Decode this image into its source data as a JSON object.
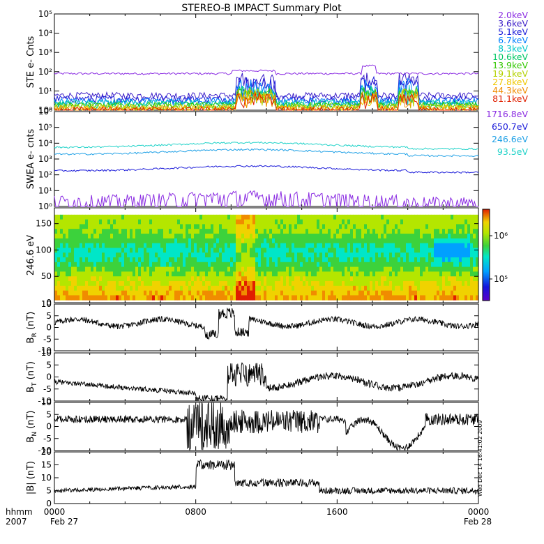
{
  "title": "STEREO-B IMPACT Summary Plot",
  "footer": {
    "time_label": "hhmm",
    "year": "2007",
    "start_date": "Feb 27",
    "end_date": "Feb 28",
    "x_ticks": [
      "0000",
      "0800",
      "1600",
      "0000"
    ]
  },
  "side_stamp": "Wed Dec 14 16:41:02 2009",
  "colors": {
    "purple": "#8a2be2",
    "navy": "#1a1ad9",
    "blue": "#0050ff",
    "cyan": "#00b4e6",
    "teal": "#00d2b4",
    "green": "#20c820",
    "lime": "#78d21e",
    "yellow": "#d2c800",
    "gold": "#f0a000",
    "orange": "#f07800",
    "red": "#e02000",
    "sky": "#1ea0e6",
    "aqua": "#1ed2c8"
  },
  "chart_data": [
    {
      "id": "ste",
      "type": "line",
      "ylabel": "STE e- Cnts",
      "yscale": "log",
      "ylim": [
        1,
        100000
      ],
      "y_ticks": [
        "10⁰",
        "10¹",
        "10²",
        "10³",
        "10⁴",
        "10⁵"
      ],
      "x_range_hours": [
        0,
        24
      ],
      "series": [
        {
          "name": "2.0keV",
          "color": "#8a2be2",
          "baseline": 80
        },
        {
          "name": "3.6keV",
          "color": "#3c1ec8",
          "baseline": 6
        },
        {
          "name": "5.1keV",
          "color": "#1a1ad9",
          "baseline": 4
        },
        {
          "name": "6.7keV",
          "color": "#0080ff",
          "baseline": 3
        },
        {
          "name": "8.3keV",
          "color": "#00c8c8",
          "baseline": 2.5
        },
        {
          "name": "10.6keV",
          "color": "#00c864",
          "baseline": 2
        },
        {
          "name": "13.9keV",
          "color": "#32c800",
          "baseline": 1.8
        },
        {
          "name": "19.1keV",
          "color": "#b4d200",
          "baseline": 1.5
        },
        {
          "name": "27.8keV",
          "color": "#f0c800",
          "baseline": 1.3
        },
        {
          "name": "44.3keV",
          "color": "#f08c00",
          "baseline": 1.2
        },
        {
          "name": "81.1keV",
          "color": "#e02000",
          "baseline": 1.05
        }
      ]
    },
    {
      "id": "swea",
      "type": "line",
      "ylabel": "SWEA e- cnts",
      "yscale": "log",
      "ylim": [
        1,
        1000000
      ],
      "y_ticks": [
        "10⁰",
        "10¹",
        "10²",
        "10³",
        "10⁴",
        "10⁵",
        "10⁶"
      ],
      "x_range_hours": [
        0,
        24
      ],
      "series": [
        {
          "name": "1716.8eV",
          "color": "#8a2be2",
          "baseline": 2
        },
        {
          "name": "650.7eV",
          "color": "#1a1ad9",
          "baseline": 180
        },
        {
          "name": "246.6eV",
          "color": "#1ea0e6",
          "baseline": 2000
        },
        {
          "name": "93.5eV",
          "color": "#1ed2c8",
          "baseline": 5500
        }
      ]
    },
    {
      "id": "pad",
      "type": "heatmap",
      "ylabel": "246.6 eV",
      "ylim": [
        0,
        180
      ],
      "y_ticks": [
        "0",
        "50",
        "100",
        "150"
      ],
      "colorbar_ticks": [
        "10⁶",
        "10⁵"
      ],
      "x_range_hours": [
        0,
        24
      ]
    },
    {
      "id": "br",
      "type": "line",
      "ylabel": "B_R (nT)",
      "ylabel_main": "B",
      "ylabel_sub": "R",
      "ylabel_unit": " (nT)",
      "ylim": [
        -10,
        10
      ],
      "y_ticks": [
        "-10",
        "-5",
        "0",
        "5",
        "10"
      ],
      "series": [
        {
          "name": "BR",
          "color": "#000000"
        }
      ]
    },
    {
      "id": "bt",
      "type": "line",
      "ylabel": "B_T (nT)",
      "ylabel_main": "B",
      "ylabel_sub": "T",
      "ylabel_unit": " (nT)",
      "ylim": [
        -10,
        10
      ],
      "y_ticks": [
        "-10",
        "-5",
        "0",
        "5",
        "10"
      ],
      "series": [
        {
          "name": "BT",
          "color": "#000000"
        }
      ]
    },
    {
      "id": "bn",
      "type": "line",
      "ylabel": "B_N (nT)",
      "ylabel_main": "B",
      "ylabel_sub": "N",
      "ylabel_unit": " (nT)",
      "ylim": [
        -10,
        10
      ],
      "y_ticks": [
        "-10",
        "-5",
        "0",
        "5",
        "10"
      ],
      "series": [
        {
          "name": "BN",
          "color": "#000000"
        }
      ]
    },
    {
      "id": "bmag",
      "type": "line",
      "ylabel": "|B| (nT)",
      "ylim": [
        0,
        20
      ],
      "y_ticks": [
        "0",
        "5",
        "10",
        "15",
        "20"
      ],
      "series": [
        {
          "name": "|B|",
          "color": "#000000"
        }
      ]
    }
  ]
}
